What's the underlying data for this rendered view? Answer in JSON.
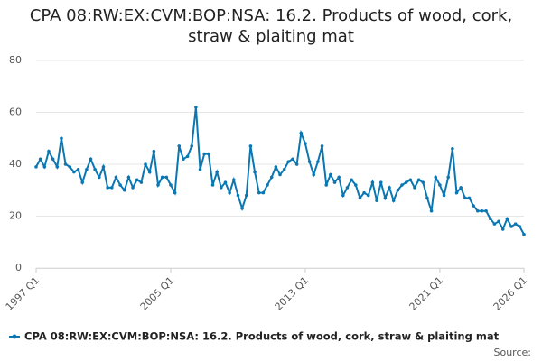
{
  "chart_data": {
    "type": "line",
    "title": "CPA 08:RW:EX:CVM:BOP:NSA: 16.2. Products of wood, cork, straw & plaiting mat",
    "categories": [
      "1997 Q1",
      null,
      null,
      null,
      null,
      null,
      null,
      null,
      null,
      null,
      null,
      null,
      null,
      null,
      null,
      null,
      null,
      null,
      null,
      null,
      null,
      null,
      null,
      null,
      null,
      null,
      null,
      null,
      null,
      null,
      null,
      null,
      "2005 Q1",
      null,
      null,
      null,
      null,
      null,
      null,
      null,
      null,
      null,
      null,
      null,
      null,
      null,
      null,
      null,
      null,
      null,
      null,
      null,
      null,
      null,
      null,
      null,
      null,
      null,
      null,
      null,
      null,
      null,
      null,
      null,
      "2013 Q1",
      null,
      null,
      null,
      null,
      null,
      null,
      null,
      null,
      null,
      null,
      null,
      null,
      null,
      null,
      null,
      null,
      null,
      null,
      null,
      null,
      null,
      null,
      null,
      null,
      null,
      null,
      null,
      null,
      null,
      null,
      null,
      "2021 Q1",
      null,
      null,
      null,
      null,
      null,
      null,
      null,
      null,
      null,
      null,
      null,
      null,
      null,
      null,
      null,
      null,
      null,
      null,
      null,
      "2026 Q1"
    ],
    "series": [
      {
        "name": "CPA 08:RW:EX:CVM:BOP:NSA: 16.2. Products of wood, cork, straw & plaiting mat",
        "color": "#0a77b3",
        "values": [
          39,
          42,
          39,
          45,
          42,
          39,
          50,
          40,
          39,
          37,
          38,
          33,
          38,
          42,
          38,
          35,
          39,
          31,
          31,
          35,
          32,
          30,
          35,
          31,
          34,
          33,
          40,
          37,
          45,
          32,
          35,
          35,
          32,
          29,
          47,
          42,
          43,
          47,
          62,
          38,
          44,
          44,
          32,
          37,
          31,
          33,
          29,
          34,
          28,
          23,
          28,
          47,
          37,
          29,
          29,
          32,
          35,
          39,
          36,
          38,
          41,
          42,
          40,
          52,
          48,
          41,
          36,
          41,
          47,
          32,
          36,
          33,
          35,
          28,
          31,
          34,
          32,
          27,
          29,
          28,
          33,
          26,
          33,
          27,
          31,
          26,
          30,
          32,
          33,
          34,
          31,
          34,
          33,
          27,
          22,
          35,
          32,
          28,
          35,
          46,
          29,
          31,
          27,
          27,
          24,
          22,
          22,
          22,
          19,
          17,
          18,
          15,
          19,
          16,
          17,
          16,
          13
        ]
      }
    ],
    "ylim": [
      0,
      80
    ],
    "yticks": [
      0,
      20,
      40,
      60,
      80
    ],
    "grid": true,
    "source": "Source:"
  }
}
